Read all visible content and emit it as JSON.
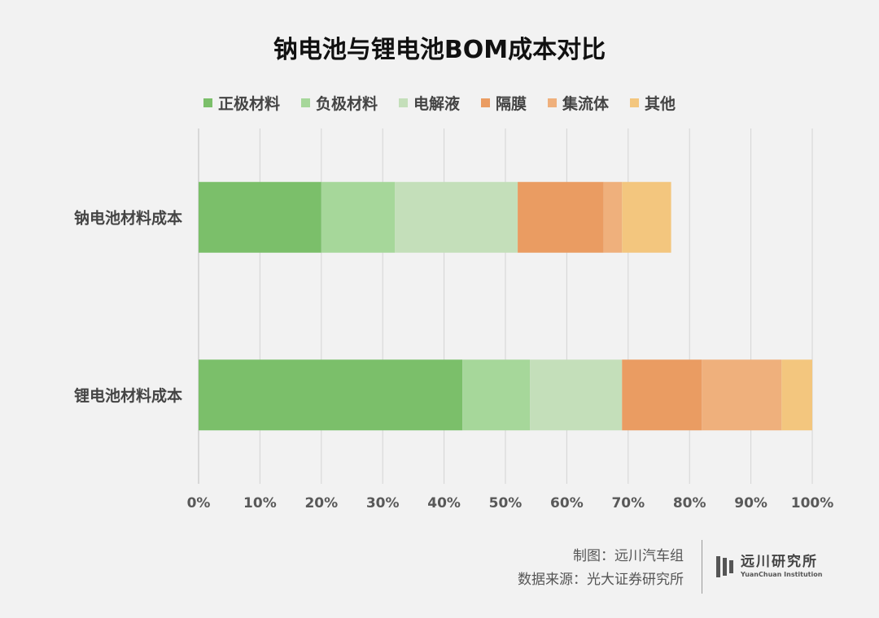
{
  "chart_data": {
    "type": "bar",
    "orientation": "horizontal",
    "stacked": true,
    "title": "钠电池与锂电池BOM成本对比",
    "categories": [
      "钠电池材料成本",
      "锂电池材料成本"
    ],
    "series": [
      {
        "name": "正极材料",
        "color": "#7bbf6a",
        "values": [
          20,
          43
        ]
      },
      {
        "name": "负极材料",
        "color": "#a6d79a",
        "values": [
          12,
          11
        ]
      },
      {
        "name": "电解液",
        "color": "#c4dfba",
        "values": [
          20,
          15
        ]
      },
      {
        "name": "隔膜",
        "color": "#ea9c62",
        "values": [
          14,
          13
        ]
      },
      {
        "name": "集流体",
        "color": "#efb07c",
        "values": [
          3,
          13
        ]
      },
      {
        "name": "其他",
        "color": "#f3c67e",
        "values": [
          8,
          5
        ]
      }
    ],
    "xlim": [
      0,
      100
    ],
    "xticks": [
      "0%",
      "10%",
      "20%",
      "30%",
      "40%",
      "50%",
      "60%",
      "70%",
      "80%",
      "90%",
      "100%"
    ],
    "grid": "vertical",
    "legend_position": "top"
  },
  "footer": {
    "credit": "制图：远川汽车组",
    "source": "数据来源：光大证券研究所"
  },
  "logo": {
    "name_cn": "远川研究所",
    "name_en": "YuanChuan Institution"
  }
}
